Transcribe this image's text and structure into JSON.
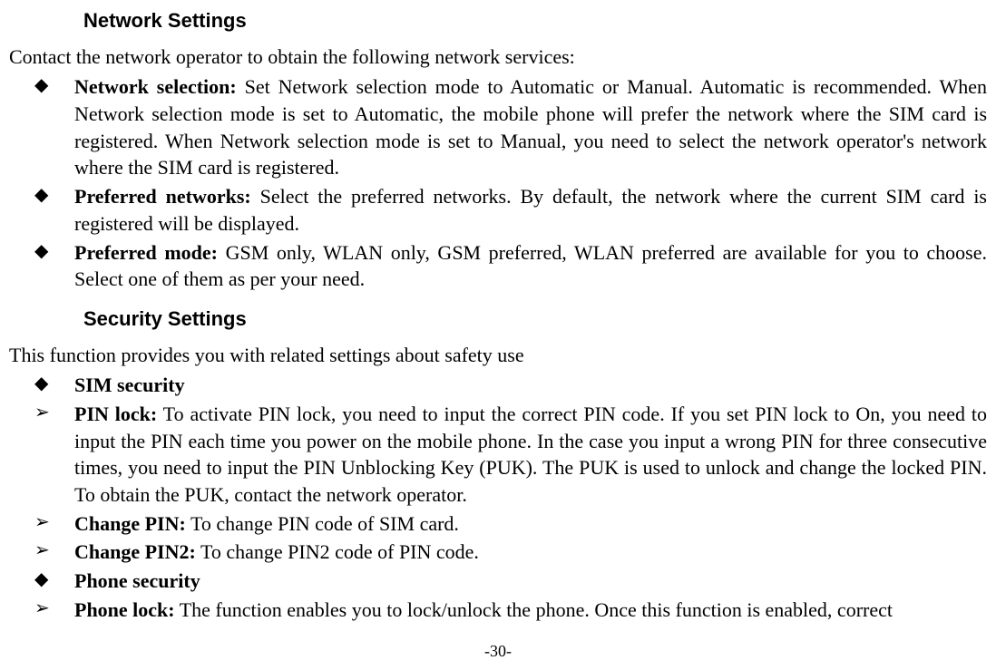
{
  "sections": {
    "network": {
      "heading": "Network Settings",
      "intro": "Contact the network operator to obtain the following network services:",
      "items": [
        {
          "term": "Network selection:",
          "text": " Set Network selection mode to Automatic or Manual. Automatic is recommended. When Network selection mode is set to Automatic, the mobile phone will prefer the network where the SIM card is registered. When Network selection mode is set to Manual, you need to select the network operator's network where the SIM card is registered."
        },
        {
          "term": "Preferred networks:",
          "text": " Select the preferred networks. By default, the network where the current SIM card is registered will be displayed."
        },
        {
          "term": "Preferred mode:",
          "text": " GSM only, WLAN only, GSM preferred, WLAN preferred are available for you to choose. Select one of them as per your need."
        }
      ]
    },
    "security": {
      "heading": "Security Settings",
      "intro": "This function provides you with related settings about safety use",
      "sim_security": "SIM security",
      "sim_items": [
        {
          "term": "PIN lock:",
          "text": " To activate PIN lock, you need to input the correct PIN code. If you set PIN lock to On, you need to input the PIN each time you power on the mobile phone. In the case you input a wrong PIN for three consecutive times, you need to input the PIN Unblocking Key (PUK). The PUK is used to unlock and change the locked PIN. To obtain the PUK, contact the network operator."
        },
        {
          "term": "Change PIN:",
          "text": " To change PIN code of SIM card."
        },
        {
          "term": "Change PIN2:",
          "text": " To change PIN2 code of PIN code."
        }
      ],
      "phone_security": "Phone security",
      "phone_items": [
        {
          "term": "Phone lock:",
          "text": " The function enables you to lock/unlock the phone. Once this function is enabled, correct"
        }
      ]
    }
  },
  "footer": "-30-",
  "style": {
    "bg": "#ffffff",
    "text_color": "#000000",
    "body_font": "Times New Roman",
    "heading_font": "Arial",
    "body_fontsize": 22,
    "heading_fontsize": 22,
    "footer_fontsize": 18
  }
}
